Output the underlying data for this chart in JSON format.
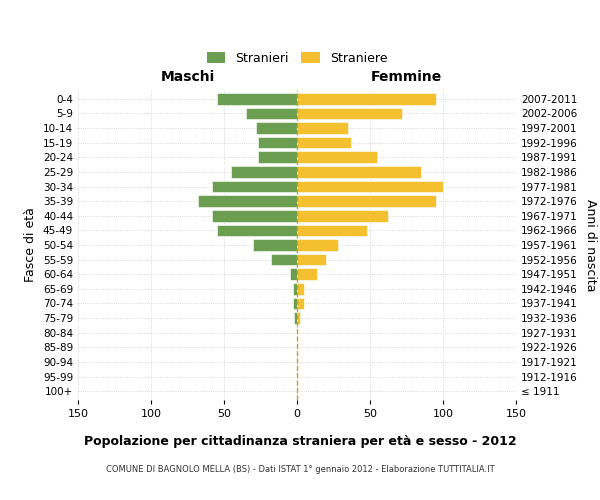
{
  "age_groups": [
    "100+",
    "95-99",
    "90-94",
    "85-89",
    "80-84",
    "75-79",
    "70-74",
    "65-69",
    "60-64",
    "55-59",
    "50-54",
    "45-49",
    "40-44",
    "35-39",
    "30-34",
    "25-29",
    "20-24",
    "15-19",
    "10-14",
    "5-9",
    "0-4"
  ],
  "birth_years": [
    "≤ 1911",
    "1912-1916",
    "1917-1921",
    "1922-1926",
    "1927-1931",
    "1932-1936",
    "1937-1941",
    "1942-1946",
    "1947-1951",
    "1952-1956",
    "1957-1961",
    "1962-1966",
    "1967-1971",
    "1972-1976",
    "1977-1981",
    "1982-1986",
    "1987-1991",
    "1992-1996",
    "1997-2001",
    "2002-2006",
    "2007-2011"
  ],
  "maschi": [
    0,
    0,
    0,
    0,
    0,
    2,
    3,
    3,
    5,
    18,
    30,
    55,
    58,
    68,
    58,
    45,
    27,
    27,
    28,
    35,
    55
  ],
  "femmine": [
    0,
    0,
    0,
    0,
    0,
    2,
    5,
    5,
    14,
    20,
    28,
    48,
    62,
    95,
    100,
    85,
    55,
    37,
    35,
    72,
    95
  ],
  "male_color": "#6b9e50",
  "female_color": "#f5c030",
  "male_label": "Stranieri",
  "female_label": "Straniere",
  "xlabel_left": "Maschi",
  "xlabel_right": "Femmine",
  "ylabel": "Fasce di età",
  "ylabel_right": "Anni di nascita",
  "title": "Popolazione per cittadinanza straniera per età e sesso - 2012",
  "subtitle": "COMUNE DI BAGNOLO MELLA (BS) - Dati ISTAT 1° gennaio 2012 - Elaborazione TUTTITALIA.IT",
  "xlim": 150,
  "xticks": [
    -150,
    -100,
    -50,
    0,
    50,
    100,
    150
  ],
  "bg_color": "#ffffff",
  "grid_color": "#cccccc",
  "dashed_line_color": "#b8a832"
}
